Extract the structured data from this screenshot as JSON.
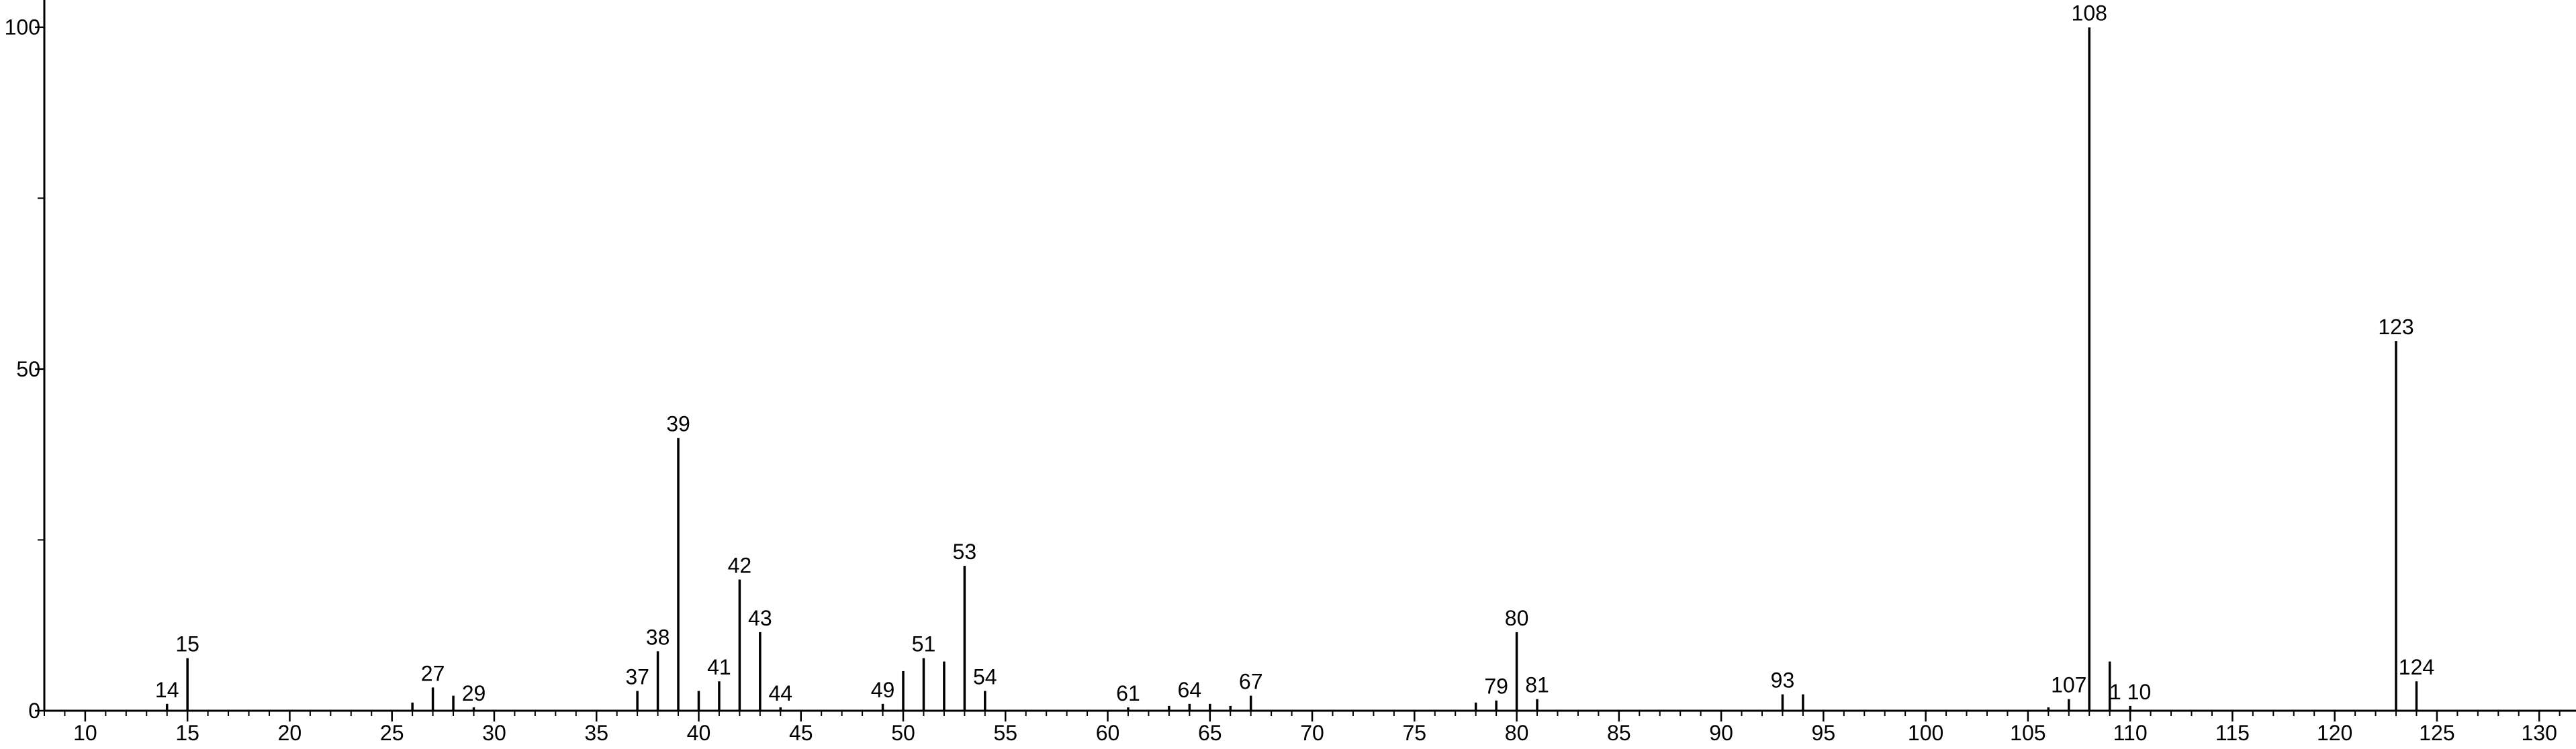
{
  "chart_data": {
    "type": "stem",
    "x": [
      14,
      15,
      26,
      27,
      28,
      29,
      37,
      38,
      39,
      40,
      41,
      42,
      43,
      44,
      49,
      50,
      51,
      52,
      53,
      54,
      61,
      63,
      64,
      65,
      66,
      67,
      78,
      79,
      80,
      81,
      93,
      94,
      106,
      107,
      108,
      109,
      110,
      123,
      124
    ],
    "values": [
      1,
      7.7,
      1.2,
      3.4,
      2.2,
      0.5,
      2.9,
      8.7,
      39.9,
      2.9,
      4.3,
      19.2,
      11.5,
      0.5,
      1,
      5.8,
      7.7,
      7.2,
      21.2,
      2.9,
      0.5,
      0.7,
      1,
      1,
      0.7,
      2.2,
      1.2,
      1.5,
      11.5,
      1.7,
      2.4,
      2.4,
      0.5,
      1.7,
      100,
      7.2,
      0.7,
      54.1,
      4.3
    ],
    "labels": [
      "14",
      "15",
      null,
      "27",
      null,
      "29",
      "37",
      "38",
      "39",
      null,
      "41",
      "42",
      "43",
      "44",
      "49",
      null,
      "51",
      null,
      "53",
      "54",
      "61",
      null,
      "64",
      null,
      null,
      "67",
      null,
      "79",
      "80",
      "81",
      "93",
      null,
      null,
      "107",
      "108",
      null,
      "1 10",
      "123",
      "124"
    ],
    "color": "#000000",
    "xlim": [
      8,
      131.8
    ],
    "ylim": [
      0,
      104
    ],
    "xticks": [
      10,
      15,
      20,
      25,
      30,
      35,
      40,
      45,
      50,
      55,
      60,
      65,
      70,
      75,
      80,
      85,
      90,
      95,
      100,
      105,
      110,
      115,
      120,
      125,
      130
    ],
    "yticks": [
      0,
      50,
      100
    ],
    "xminor_step": 1,
    "yminor_step": 25
  }
}
